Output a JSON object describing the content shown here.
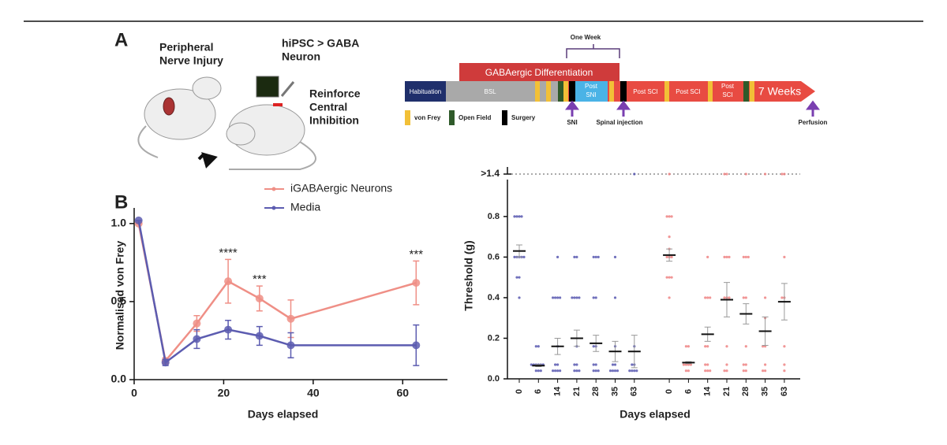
{
  "panel_a": {
    "label": "A",
    "left_caption": [
      "Peripheral",
      "Nerve Injury"
    ],
    "middle_caption": [
      "hiPSC > GABA",
      "Neuron"
    ],
    "right_caption": [
      "Reinforce",
      "Central",
      "Inhibition"
    ],
    "timeline": {
      "one_week": "One Week",
      "differentiation": "GABAergic Differentiation",
      "habituation": "Habituation",
      "bsl": "BSL",
      "post_sni": [
        "Post",
        "SNI"
      ],
      "post_sci_1": "Post SCI",
      "post_sci_2": "Post SCI",
      "post_sci_3": [
        "Post",
        "SCI"
      ],
      "end": "7 Weeks",
      "events": [
        "SNI",
        "Spinal injection",
        "Perfusion"
      ],
      "legend": [
        "von Frey",
        "Open Field",
        "Surgery"
      ]
    }
  },
  "panel_b_label": "B",
  "chart_data": [
    {
      "type": "line",
      "x_label": "Days elapsed",
      "y_label": "Normalised von Frey",
      "x": [
        1,
        7,
        14,
        21,
        28,
        35,
        63
      ],
      "series": [
        {
          "name": "iGABAergic Neurons",
          "color": "#ef8f86",
          "values": [
            1.0,
            0.12,
            0.36,
            0.63,
            0.52,
            0.39,
            0.62
          ],
          "errors": [
            0,
            0.02,
            0.05,
            0.14,
            0.08,
            0.12,
            0.14
          ]
        },
        {
          "name": "Media",
          "color": "#5c5cb0",
          "values": [
            1.02,
            0.11,
            0.26,
            0.32,
            0.28,
            0.22,
            0.22
          ],
          "errors": [
            0,
            0.02,
            0.06,
            0.06,
            0.06,
            0.08,
            0.13
          ]
        }
      ],
      "annotations": [
        {
          "x": 21,
          "label": "****"
        },
        {
          "x": 28,
          "label": "***"
        },
        {
          "x": 63,
          "label": "***"
        }
      ],
      "xlim": [
        0,
        70
      ],
      "xticks": [
        0,
        20,
        40,
        60
      ],
      "ylim": [
        0,
        1.1
      ],
      "yticks": [
        {
          "value": 0,
          "label": "0.0"
        },
        {
          "value": 0.5,
          "label": "0.5"
        },
        {
          "value": 1,
          "label": "1.0"
        }
      ]
    },
    {
      "type": "strip",
      "x_label": "Days elapsed",
      "y_label": "Threshold (g)",
      "categories": [
        "0",
        "6",
        "14",
        "21",
        "28",
        "35",
        "63",
        "0",
        "6",
        "14",
        "21",
        "28",
        "35",
        "63"
      ],
      "colors": [
        "#4d4dab",
        "#4d4dab",
        "#4d4dab",
        "#4d4dab",
        "#4d4dab",
        "#4d4dab",
        "#4d4dab",
        "#ee7c7c",
        "#ee7c7c",
        "#ee7c7c",
        "#ee7c7c",
        "#ee7c7c",
        "#ee7c7c",
        "#ee7c7c"
      ],
      "values": [
        0.63,
        0.065,
        0.16,
        0.2,
        0.175,
        0.135,
        0.135,
        0.61,
        0.08,
        0.22,
        0.39,
        0.32,
        0.235,
        0.38
      ],
      "errors": [
        0.03,
        0.005,
        0.04,
        0.04,
        0.04,
        0.05,
        0.08,
        0.03,
        0.005,
        0.035,
        0.085,
        0.05,
        0.07,
        0.09
      ],
      "points": [
        [
          0.8,
          0.8,
          0.8,
          0.8,
          0.6,
          0.6,
          0.6,
          0.6,
          0.6,
          0.5,
          0.5,
          0.4
        ],
        [
          0.16,
          0.16,
          0.07,
          0.07,
          0.07,
          0.07,
          0.07,
          0.07,
          0.04,
          0.04,
          0.04
        ],
        [
          0.6,
          0.4,
          0.4,
          0.4,
          0.4,
          0.16,
          0.07,
          0.07,
          0.04,
          0.04,
          0.04,
          0.04
        ],
        [
          0.6,
          0.6,
          0.4,
          0.4,
          0.4,
          0.4,
          0.16,
          0.07,
          0.07,
          0.04,
          0.04,
          0.04
        ],
        [
          0.6,
          0.6,
          0.6,
          0.4,
          0.4,
          0.16,
          0.16,
          0.07,
          0.07,
          0.04,
          0.04,
          0.04
        ],
        [
          0.6,
          0.4,
          0.16,
          0.07,
          0.07,
          0.04,
          0.04,
          0.04,
          0.04
        ],
        [
          1.4,
          0.16,
          0.07,
          0.07,
          0.04,
          0.04,
          0.04,
          0.04
        ],
        [
          1.4,
          0.8,
          0.8,
          0.8,
          0.7,
          0.64,
          0.6,
          0.6,
          0.6,
          0.5,
          0.5,
          0.5,
          0.4
        ],
        [
          0.16,
          0.16,
          0.07,
          0.07,
          0.07,
          0.07,
          0.04,
          0.04
        ],
        [
          0.6,
          0.4,
          0.4,
          0.4,
          0.16,
          0.16,
          0.07,
          0.07,
          0.04,
          0.04,
          0.04
        ],
        [
          1.4,
          1.4,
          0.6,
          0.6,
          0.6,
          0.4,
          0.4,
          0.4,
          0.16,
          0.07,
          0.04,
          0.04
        ],
        [
          1.4,
          0.6,
          0.6,
          0.6,
          0.4,
          0.4,
          0.16,
          0.07,
          0.07,
          0.04,
          0.04
        ],
        [
          1.4,
          0.4,
          0.3,
          0.16,
          0.16,
          0.07,
          0.04,
          0.04
        ],
        [
          1.4,
          1.4,
          0.6,
          0.4,
          0.4,
          0.16,
          0.07,
          0.04
        ]
      ],
      "ylim": [
        0,
        0.85
      ],
      "yticks": [
        {
          "value": 0,
          "label": "0.0"
        },
        {
          "value": 0.2,
          "label": "0.2"
        },
        {
          "value": 0.4,
          "label": "0.4"
        },
        {
          "value": 0.6,
          "label": "0.6"
        },
        {
          "value": 0.8,
          "label": "0.8"
        }
      ],
      "break_tick": {
        "value": 1.4,
        "label": ">1.4"
      }
    }
  ]
}
